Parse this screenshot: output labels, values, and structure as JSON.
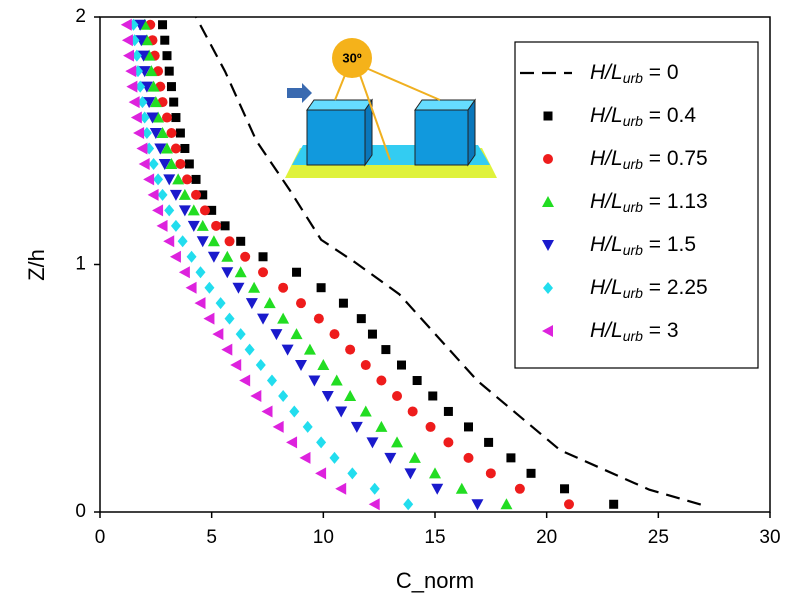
{
  "chart_data": {
    "type": "scatter",
    "x_label": "C_norm",
    "y_label": "Z/h",
    "inset_label": "30º",
    "xlim": [
      0,
      30
    ],
    "xticks": [
      0,
      5,
      10,
      15,
      20,
      25,
      30
    ],
    "ylim": [
      0,
      2
    ],
    "yticks": [
      0,
      1,
      2
    ],
    "y": [
      0.03125,
      0.09375,
      0.15625,
      0.21875,
      0.28125,
      0.34375,
      0.40625,
      0.46875,
      0.53125,
      0.59375,
      0.65625,
      0.71875,
      0.78125,
      0.84375,
      0.90625,
      0.96875,
      1.03125,
      1.09375,
      1.15625,
      1.21875,
      1.28125,
      1.34375,
      1.40625,
      1.46875,
      1.53125,
      1.59375,
      1.65625,
      1.71875,
      1.78125,
      1.84375,
      1.90625,
      1.96875
    ],
    "line": {
      "name": [
        "H/L",
        "urb",
        " = 0"
      ],
      "color": "#000000",
      "x": [
        26.9,
        24.6,
        20.6,
        16.9,
        15.0,
        13.4,
        11.4,
        9.9,
        8.5,
        7.0,
        5.6,
        4.3
      ],
      "y": [
        0.03,
        0.09,
        0.25,
        0.53,
        0.72,
        0.88,
        1.01,
        1.1,
        1.3,
        1.5,
        1.78,
        2.0
      ]
    },
    "series": [
      {
        "name": [
          "H/L",
          "urb",
          " = 0.4"
        ],
        "color": "#000000",
        "marker": "square",
        "x": [
          23.0,
          20.8,
          19.3,
          18.4,
          17.4,
          16.5,
          15.6,
          14.9,
          14.2,
          13.5,
          12.8,
          12.2,
          11.7,
          10.9,
          9.9,
          8.8,
          7.3,
          6.3,
          5.6,
          5.0,
          4.6,
          4.3,
          4.0,
          3.8,
          3.6,
          3.4,
          3.3,
          3.2,
          3.1,
          3.0,
          2.9,
          2.8
        ]
      },
      {
        "name": [
          "H/L",
          "urb",
          " = 0.75"
        ],
        "color": "#ee1c1c",
        "marker": "circle",
        "x": [
          21.0,
          18.8,
          17.5,
          16.5,
          15.6,
          14.8,
          14.0,
          13.3,
          12.6,
          11.9,
          11.2,
          10.5,
          9.8,
          9.0,
          8.2,
          7.3,
          6.5,
          5.8,
          5.2,
          4.7,
          4.3,
          3.9,
          3.6,
          3.4,
          3.2,
          3.0,
          2.8,
          2.7,
          2.6,
          2.45,
          2.35,
          2.25
        ]
      },
      {
        "name": [
          "H/L",
          "urb",
          " = 1.13"
        ],
        "color": "#22dd22",
        "marker": "triangle-up",
        "x": [
          18.2,
          16.2,
          15.0,
          14.1,
          13.3,
          12.6,
          11.9,
          11.2,
          10.6,
          10.0,
          9.4,
          8.8,
          8.2,
          7.6,
          6.9,
          6.3,
          5.7,
          5.1,
          4.6,
          4.2,
          3.8,
          3.5,
          3.2,
          3.0,
          2.8,
          2.6,
          2.5,
          2.4,
          2.3,
          2.2,
          2.1,
          2.0
        ]
      },
      {
        "name": [
          "H/L",
          "urb",
          " = 1.5"
        ],
        "color": "#1a1acc",
        "marker": "triangle-down",
        "x": [
          16.9,
          15.1,
          13.9,
          13.0,
          12.2,
          11.5,
          10.8,
          10.2,
          9.6,
          9.0,
          8.4,
          7.9,
          7.3,
          6.8,
          6.2,
          5.7,
          5.1,
          4.6,
          4.2,
          3.8,
          3.4,
          3.1,
          2.9,
          2.7,
          2.5,
          2.35,
          2.2,
          2.1,
          2.0,
          1.95,
          1.85,
          1.8
        ]
      },
      {
        "name": [
          "H/L",
          "urb",
          " = 2.25"
        ],
        "color": "#22ddee",
        "marker": "diamond",
        "x": [
          13.8,
          12.3,
          11.3,
          10.5,
          9.9,
          9.3,
          8.7,
          8.2,
          7.7,
          7.2,
          6.7,
          6.3,
          5.8,
          5.4,
          4.9,
          4.5,
          4.1,
          3.7,
          3.4,
          3.1,
          2.8,
          2.6,
          2.4,
          2.2,
          2.1,
          2.0,
          1.9,
          1.8,
          1.7,
          1.65,
          1.55,
          1.5
        ]
      },
      {
        "name": [
          "H/L",
          "urb",
          " = 3"
        ],
        "color": "#dd22dd",
        "marker": "triangle-left",
        "x": [
          12.3,
          10.8,
          9.9,
          9.2,
          8.6,
          8.0,
          7.5,
          7.0,
          6.5,
          6.1,
          5.7,
          5.3,
          4.9,
          4.5,
          4.1,
          3.8,
          3.4,
          3.1,
          2.8,
          2.6,
          2.4,
          2.2,
          2.0,
          1.9,
          1.75,
          1.65,
          1.55,
          1.45,
          1.4,
          1.3,
          1.25,
          1.2
        ]
      }
    ]
  }
}
